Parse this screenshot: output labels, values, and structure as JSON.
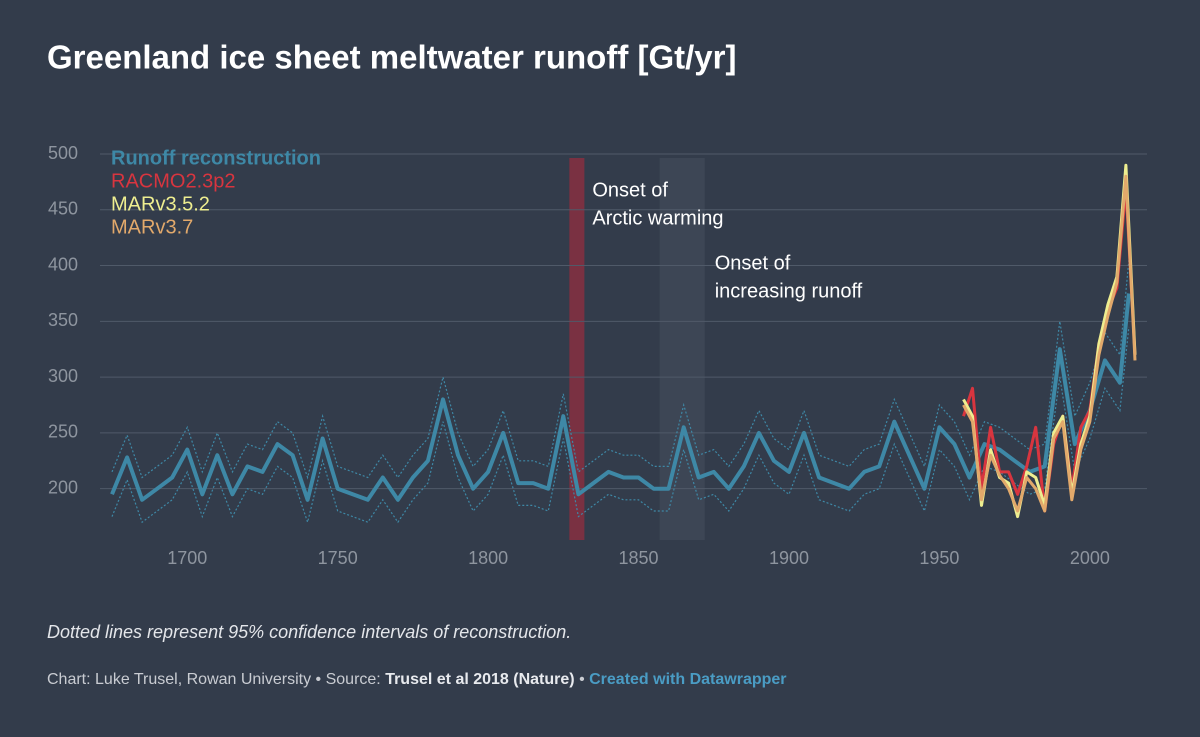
{
  "chart_data": {
    "type": "line",
    "title": "Greenland ice sheet meltwater runoff [Gt/yr]",
    "note": "Dotted lines represent 95% confidence intervals of reconstruction.",
    "credit": {
      "byline": "Chart: Luke Trusel, Rowan University • Source:",
      "source": "Trusel et al 2018 (Nature)",
      "separator": "•",
      "tool": "Created with Datawrapper"
    },
    "xlim": [
      1671,
      2019
    ],
    "ylim": [
      154,
      500
    ],
    "xticks": [
      1700,
      1750,
      1800,
      1850,
      1900,
      1950,
      2000
    ],
    "yticks": [
      200,
      250,
      300,
      350,
      400,
      450,
      500
    ],
    "grid": true,
    "legend": "top-left",
    "highlights": [
      {
        "from": 1827,
        "to": 1832,
        "color": "#7a3142",
        "label": [
          "Onset of",
          "Arctic warming"
        ]
      },
      {
        "from": 1857,
        "to": 1872,
        "color": "#3d4655",
        "label": [
          "Onset of",
          "increasing runoff"
        ]
      }
    ],
    "x": [
      1675,
      1680,
      1685,
      1690,
      1695,
      1700,
      1705,
      1710,
      1715,
      1720,
      1725,
      1730,
      1735,
      1740,
      1745,
      1750,
      1755,
      1760,
      1765,
      1770,
      1775,
      1780,
      1785,
      1790,
      1795,
      1800,
      1805,
      1810,
      1815,
      1820,
      1825,
      1830,
      1835,
      1840,
      1845,
      1850,
      1855,
      1860,
      1865,
      1870,
      1875,
      1880,
      1885,
      1890,
      1895,
      1900,
      1905,
      1910,
      1915,
      1920,
      1925,
      1930,
      1935,
      1940,
      1945,
      1950,
      1955,
      1960,
      1965,
      1970,
      1975,
      1980,
      1985,
      1990,
      1995,
      2000,
      2005,
      2010,
      2013
    ],
    "series": [
      {
        "name": "Runoff reconstruction",
        "color": "#3e88a6",
        "values": [
          195,
          228,
          190,
          200,
          210,
          235,
          195,
          230,
          195,
          220,
          215,
          240,
          230,
          190,
          245,
          200,
          195,
          190,
          210,
          190,
          210,
          225,
          280,
          230,
          200,
          215,
          250,
          205,
          205,
          200,
          265,
          195,
          205,
          215,
          210,
          210,
          200,
          200,
          255,
          210,
          215,
          200,
          220,
          250,
          225,
          215,
          250,
          210,
          205,
          200,
          215,
          220,
          260,
          230,
          200,
          255,
          240,
          210,
          240,
          235,
          225,
          215,
          220,
          325,
          240,
          270,
          315,
          295,
          375
        ],
        "ci_low": [
          175,
          208,
          170,
          180,
          190,
          215,
          175,
          210,
          175,
          200,
          195,
          220,
          210,
          170,
          225,
          180,
          175,
          170,
          190,
          170,
          190,
          205,
          260,
          210,
          180,
          195,
          230,
          185,
          185,
          180,
          245,
          175,
          185,
          195,
          190,
          190,
          180,
          180,
          235,
          190,
          195,
          180,
          200,
          230,
          205,
          195,
          230,
          190,
          185,
          180,
          195,
          200,
          240,
          210,
          180,
          235,
          220,
          190,
          220,
          215,
          205,
          195,
          200,
          300,
          215,
          245,
          290,
          270,
          345
        ],
        "ci_high": [
          215,
          248,
          210,
          220,
          230,
          255,
          215,
          250,
          215,
          240,
          235,
          260,
          250,
          210,
          265,
          220,
          215,
          210,
          230,
          210,
          230,
          245,
          300,
          250,
          220,
          235,
          270,
          225,
          225,
          220,
          285,
          215,
          225,
          235,
          230,
          230,
          220,
          220,
          275,
          230,
          235,
          220,
          240,
          270,
          245,
          235,
          270,
          230,
          225,
          220,
          235,
          240,
          280,
          250,
          220,
          275,
          260,
          230,
          260,
          255,
          245,
          235,
          240,
          350,
          265,
          295,
          340,
          320,
          405
        ]
      },
      {
        "name": "RACMO2.3p2",
        "color": "#d8353f",
        "x": [
          1958,
          1961,
          1964,
          1967,
          1970,
          1973,
          1976,
          1979,
          1982,
          1985,
          1988,
          1991,
          1994,
          1997,
          2000,
          2003,
          2006,
          2009,
          2012,
          2015
        ],
        "values": [
          265,
          290,
          200,
          255,
          215,
          215,
          195,
          220,
          255,
          180,
          240,
          265,
          200,
          255,
          270,
          330,
          360,
          380,
          470,
          320
        ]
      },
      {
        "name": "MARv3.5.2",
        "color": "#eeee90",
        "x": [
          1958,
          1961,
          1964,
          1967,
          1970,
          1973,
          1976,
          1979,
          1982,
          1985,
          1988,
          1991,
          1994,
          1997,
          2000,
          2003,
          2006,
          2009,
          2012,
          2015
        ],
        "values": [
          280,
          265,
          185,
          235,
          210,
          205,
          175,
          215,
          210,
          185,
          250,
          265,
          195,
          240,
          265,
          330,
          365,
          390,
          490,
          320
        ]
      },
      {
        "name": "MARv3.7",
        "color": "#e2a96b",
        "x": [
          1958,
          1961,
          1964,
          1967,
          1970,
          1973,
          1976,
          1979,
          1982,
          1985,
          1988,
          1991,
          1994,
          1997,
          2000,
          2003,
          2006,
          2009,
          2012,
          2015
        ],
        "values": [
          275,
          260,
          190,
          230,
          212,
          200,
          180,
          210,
          200,
          180,
          245,
          260,
          190,
          235,
          260,
          320,
          355,
          385,
          480,
          315
        ]
      }
    ]
  }
}
